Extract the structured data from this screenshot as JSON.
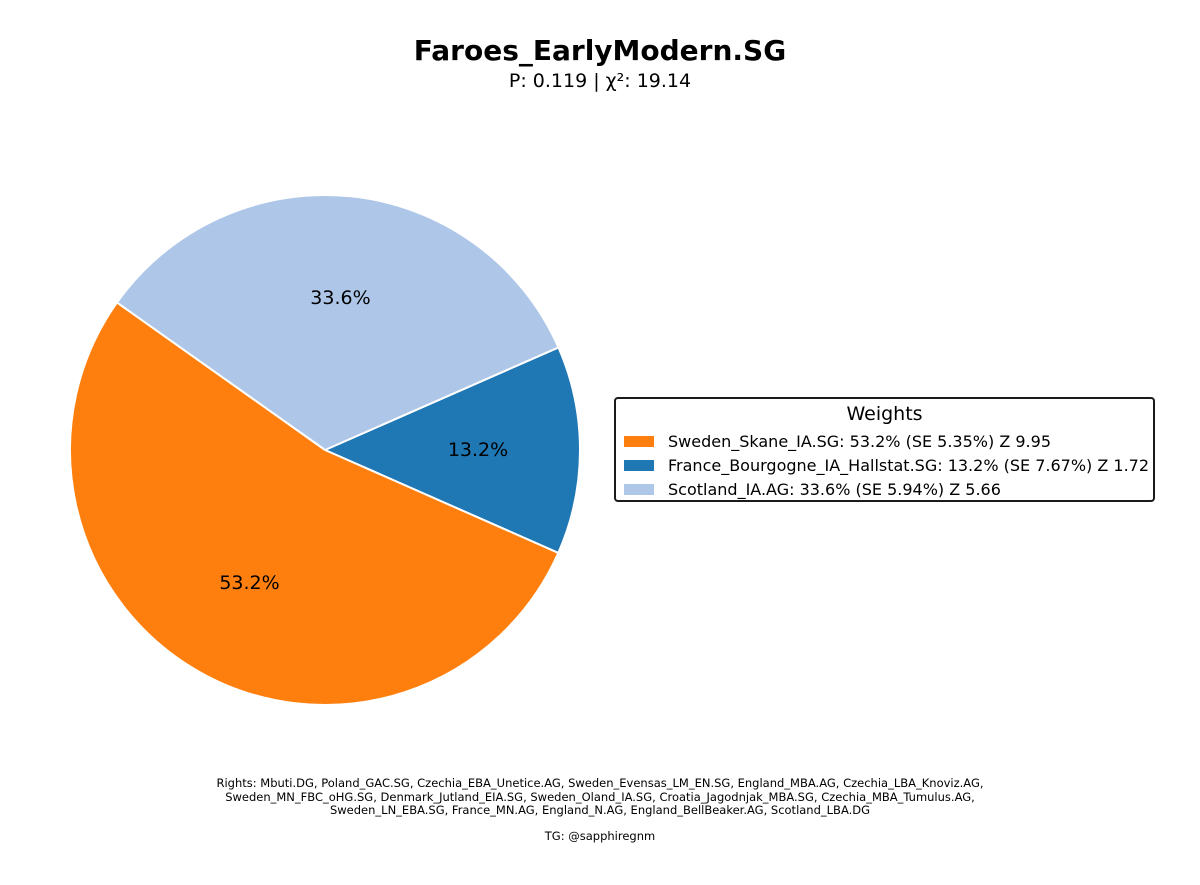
{
  "chart_data": {
    "type": "pie",
    "title": "Faroes_EarlyModern.SG",
    "subtitle": "P: 0.119 | χ²: 19.14",
    "slices": [
      {
        "label": "France_Bourgogne_IA_Hallstat.SG",
        "value": 13.2,
        "pct_label": "13.2%",
        "color": "#1f77b4"
      },
      {
        "label": "Scotland_IA.AG",
        "value": 33.6,
        "pct_label": "33.6%",
        "color": "#aec7e8"
      },
      {
        "label": "Sweden_Skane_IA.SG",
        "value": 53.2,
        "pct_label": "53.2%",
        "color": "#ff7f0e"
      }
    ],
    "legend": {
      "title": "Weights",
      "placement": "right",
      "entries": [
        {
          "label": "Sweden_Skane_IA.SG: 53.2% (SE 5.35%) Z 9.95",
          "color": "#ff7f0e"
        },
        {
          "label": "France_Bourgogne_IA_Hallstat.SG: 13.2% (SE 7.67%) Z 1.72",
          "color": "#1f77b4"
        },
        {
          "label": "Scotland_IA.AG: 33.6% (SE 5.94%) Z 5.66",
          "color": "#aec7e8"
        }
      ]
    }
  },
  "footer": {
    "rights_lines": [
      "Rights: Mbuti.DG, Poland_GAC.SG, Czechia_EBA_Unetice.AG, Sweden_Evensas_LM_EN.SG, England_MBA.AG, Czechia_LBA_Knoviz.AG,",
      "Sweden_MN_FBC_oHG.SG, Denmark_Jutland_EIA.SG, Sweden_Oland_IA.SG, Croatia_Jagodnjak_MBA.SG, Czechia_MBA_Tumulus.AG,",
      "Sweden_LN_EBA.SG, France_MN.AG, England_N.AG, England_BellBeaker.AG, Scotland_LBA.DG"
    ],
    "tg": "TG: @sapphiregnm"
  }
}
